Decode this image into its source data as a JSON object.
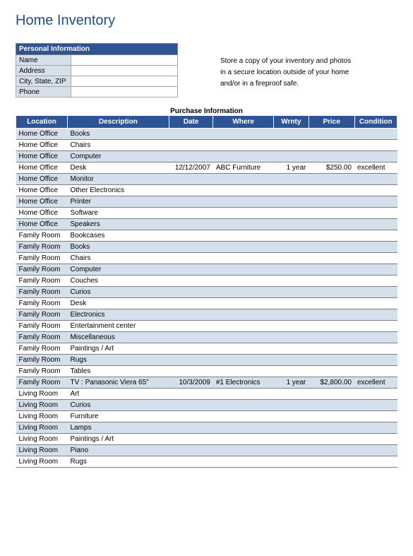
{
  "title": "Home Inventory",
  "personal": {
    "header": "Personal Information",
    "fields": [
      {
        "label": "Name",
        "value": ""
      },
      {
        "label": "Address",
        "value": ""
      },
      {
        "label": "City, State, ZIP",
        "value": ""
      },
      {
        "label": "Phone",
        "value": ""
      }
    ]
  },
  "note": {
    "line1": "Store a copy of your inventory and photos",
    "line2": "in a secure location outside of your home",
    "line3": "and/or in a fireproof safe."
  },
  "purchase_header": "Purchase Information",
  "columns": {
    "location": "Location",
    "description": "Description",
    "date": "Date",
    "where": "Where",
    "wrnty": "Wrnty",
    "price": "Price",
    "condition": "Condition"
  },
  "rows": [
    {
      "loc": "Home Office",
      "desc": "Books",
      "date": "",
      "where": "",
      "wrnty": "",
      "price": "",
      "cond": ""
    },
    {
      "loc": "Home Office",
      "desc": "Chairs",
      "date": "",
      "where": "",
      "wrnty": "",
      "price": "",
      "cond": ""
    },
    {
      "loc": "Home Office",
      "desc": "Computer",
      "date": "",
      "where": "",
      "wrnty": "",
      "price": "",
      "cond": ""
    },
    {
      "loc": "Home Office",
      "desc": "Desk",
      "date": "12/12/2007",
      "where": "ABC Furniture",
      "wrnty": "1 year",
      "price": "$250.00",
      "cond": "excellent"
    },
    {
      "loc": "Home Office",
      "desc": "Monitor",
      "date": "",
      "where": "",
      "wrnty": "",
      "price": "",
      "cond": ""
    },
    {
      "loc": "Home Office",
      "desc": "Other Electronics",
      "date": "",
      "where": "",
      "wrnty": "",
      "price": "",
      "cond": ""
    },
    {
      "loc": "Home Office",
      "desc": "Printer",
      "date": "",
      "where": "",
      "wrnty": "",
      "price": "",
      "cond": ""
    },
    {
      "loc": "Home Office",
      "desc": "Software",
      "date": "",
      "where": "",
      "wrnty": "",
      "price": "",
      "cond": ""
    },
    {
      "loc": "Home Office",
      "desc": "Speakers",
      "date": "",
      "where": "",
      "wrnty": "",
      "price": "",
      "cond": ""
    },
    {
      "loc": "Family Room",
      "desc": "Bookcases",
      "date": "",
      "where": "",
      "wrnty": "",
      "price": "",
      "cond": ""
    },
    {
      "loc": "Family Room",
      "desc": "Books",
      "date": "",
      "where": "",
      "wrnty": "",
      "price": "",
      "cond": ""
    },
    {
      "loc": "Family Room",
      "desc": "Chairs",
      "date": "",
      "where": "",
      "wrnty": "",
      "price": "",
      "cond": ""
    },
    {
      "loc": "Family Room",
      "desc": "Computer",
      "date": "",
      "where": "",
      "wrnty": "",
      "price": "",
      "cond": ""
    },
    {
      "loc": "Family Room",
      "desc": "Couches",
      "date": "",
      "where": "",
      "wrnty": "",
      "price": "",
      "cond": ""
    },
    {
      "loc": "Family Room",
      "desc": "Curios",
      "date": "",
      "where": "",
      "wrnty": "",
      "price": "",
      "cond": ""
    },
    {
      "loc": "Family Room",
      "desc": "Desk",
      "date": "",
      "where": "",
      "wrnty": "",
      "price": "",
      "cond": ""
    },
    {
      "loc": "Family Room",
      "desc": "Electronics",
      "date": "",
      "where": "",
      "wrnty": "",
      "price": "",
      "cond": ""
    },
    {
      "loc": "Family Room",
      "desc": "Entertainment center",
      "date": "",
      "where": "",
      "wrnty": "",
      "price": "",
      "cond": ""
    },
    {
      "loc": "Family Room",
      "desc": "Miscellaneous",
      "date": "",
      "where": "",
      "wrnty": "",
      "price": "",
      "cond": ""
    },
    {
      "loc": "Family Room",
      "desc": "Paintings / Art",
      "date": "",
      "where": "",
      "wrnty": "",
      "price": "",
      "cond": ""
    },
    {
      "loc": "Family Room",
      "desc": "Rugs",
      "date": "",
      "where": "",
      "wrnty": "",
      "price": "",
      "cond": ""
    },
    {
      "loc": "Family Room",
      "desc": "Tables",
      "date": "",
      "where": "",
      "wrnty": "",
      "price": "",
      "cond": ""
    },
    {
      "loc": "Family Room",
      "desc": "TV : Panasonic Viera 65\"",
      "date": "10/3/2009",
      "where": "#1 Electronics",
      "wrnty": "1 year",
      "price": "$2,800.00",
      "cond": "excellent"
    },
    {
      "loc": "Living Room",
      "desc": "Art",
      "date": "",
      "where": "",
      "wrnty": "",
      "price": "",
      "cond": ""
    },
    {
      "loc": "Living Room",
      "desc": "Curios",
      "date": "",
      "where": "",
      "wrnty": "",
      "price": "",
      "cond": ""
    },
    {
      "loc": "Living Room",
      "desc": "Furniture",
      "date": "",
      "where": "",
      "wrnty": "",
      "price": "",
      "cond": ""
    },
    {
      "loc": "Living Room",
      "desc": "Lamps",
      "date": "",
      "where": "",
      "wrnty": "",
      "price": "",
      "cond": ""
    },
    {
      "loc": "Living Room",
      "desc": "Paintings / Art",
      "date": "",
      "where": "",
      "wrnty": "",
      "price": "",
      "cond": ""
    },
    {
      "loc": "Living Room",
      "desc": "Piano",
      "date": "",
      "where": "",
      "wrnty": "",
      "price": "",
      "cond": ""
    },
    {
      "loc": "Living Room",
      "desc": "Rugs",
      "date": "",
      "where": "",
      "wrnty": "",
      "price": "",
      "cond": ""
    }
  ],
  "colors": {
    "header_bg": "#2f5496",
    "header_fg": "#ffffff",
    "band_odd": "#d6dfec",
    "band_even": "#ffffff",
    "title_color": "#1f4e8c",
    "border": "#7f7f7f"
  }
}
